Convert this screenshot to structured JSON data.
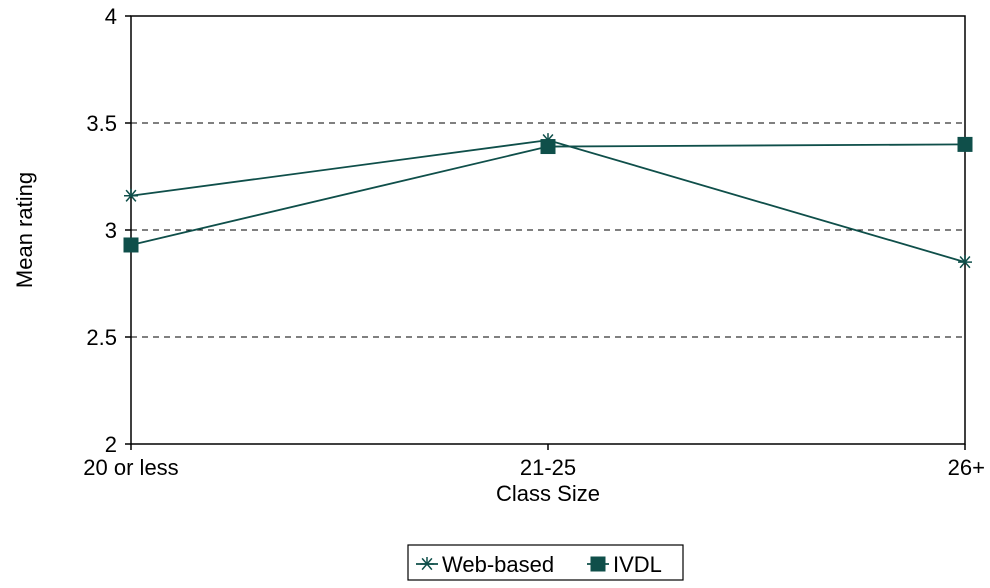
{
  "chart_data": {
    "type": "line",
    "categories": [
      "20 or less",
      "21-25",
      "26+"
    ],
    "series": [
      {
        "name": "Web-based",
        "values": [
          3.16,
          3.42,
          2.85
        ],
        "marker": "star"
      },
      {
        "name": "IVDL",
        "values": [
          2.93,
          3.39,
          3.4
        ],
        "marker": "square"
      }
    ],
    "title": "",
    "xlabel": "Class Size",
    "ylabel": "Mean rating",
    "ylim": [
      2,
      4
    ],
    "yticks": [
      "2",
      "2.5",
      "3",
      "3.5",
      "4"
    ],
    "ytick_values": [
      2,
      2.5,
      3,
      3.5,
      4
    ],
    "grid": "dashed horizontal",
    "legend": "bottom",
    "colors": {
      "series": "#0f4f4a",
      "grid": "#000000",
      "axis": "#000000"
    }
  }
}
